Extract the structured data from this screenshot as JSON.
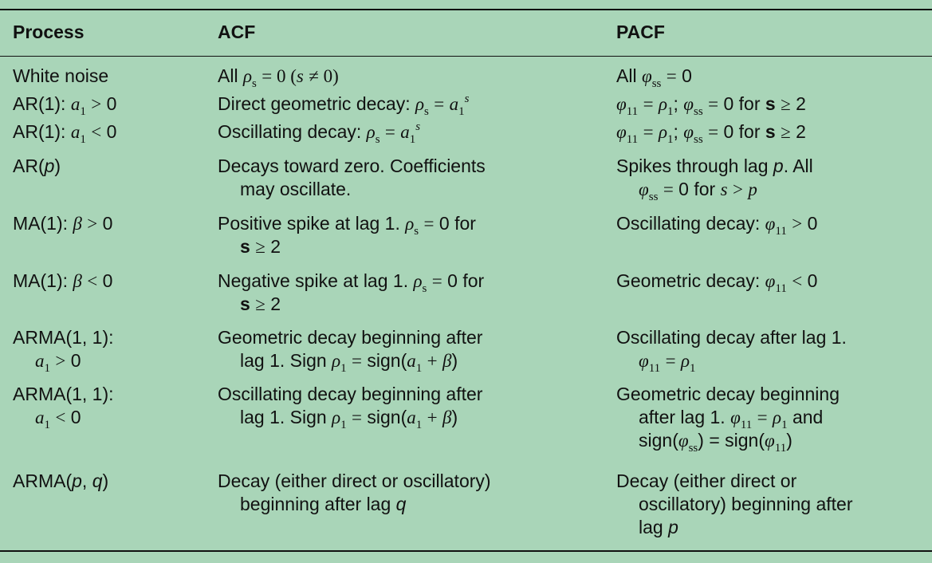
{
  "headers": {
    "process": "Process",
    "acf": "ACF",
    "pacf": "PACF"
  },
  "rows": [
    {
      "process": "White noise",
      "acf": "All ρs = 0 (s ≠ 0)",
      "pacf": "All φss = 0"
    },
    {
      "process": "AR(1): a1 > 0",
      "acf": "Direct geometric decay: ρs = a1^s",
      "pacf": "φ11 = ρ1; φss = 0 for s ≥ 2"
    },
    {
      "process": "AR(1): a1 < 0",
      "acf": "Oscillating decay: ρs = a1^s",
      "pacf": "φ11 = ρ1; φss = 0 for s ≥ 2"
    },
    {
      "process": "AR(p)",
      "acf": "Decays toward zero. Coefficients may oscillate.",
      "pacf": "Spikes through lag p. All φss = 0 for s > p"
    },
    {
      "process": "MA(1): β > 0",
      "acf": "Positive spike at lag 1. ρs = 0 for s ≥ 2",
      "pacf": "Oscillating decay: φ11 > 0"
    },
    {
      "process": "MA(1): β < 0",
      "acf": "Negative spike at lag 1. ρs = 0 for s ≥ 2",
      "pacf": "Geometric decay: φ11 < 0"
    },
    {
      "process": "ARMA(1, 1): a1 > 0",
      "acf": "Geometric decay beginning after lag 1. Sign ρ1 = sign(a1 + β)",
      "pacf": "Oscillating decay after lag 1. φ11 = ρ1"
    },
    {
      "process": "ARMA(1, 1): a1 < 0",
      "acf": "Oscillating decay beginning after lag 1. Sign ρ1 = sign(a1 + β)",
      "pacf": "Geometric decay beginning after lag 1. φ11 = ρ1 and sign(φss) = sign(φ11)"
    },
    {
      "process": "ARMA(p, q)",
      "acf": "Decay (either direct or oscillatory) beginning after lag q",
      "pacf": "Decay (either direct or oscillatory) beginning after lag p"
    }
  ]
}
